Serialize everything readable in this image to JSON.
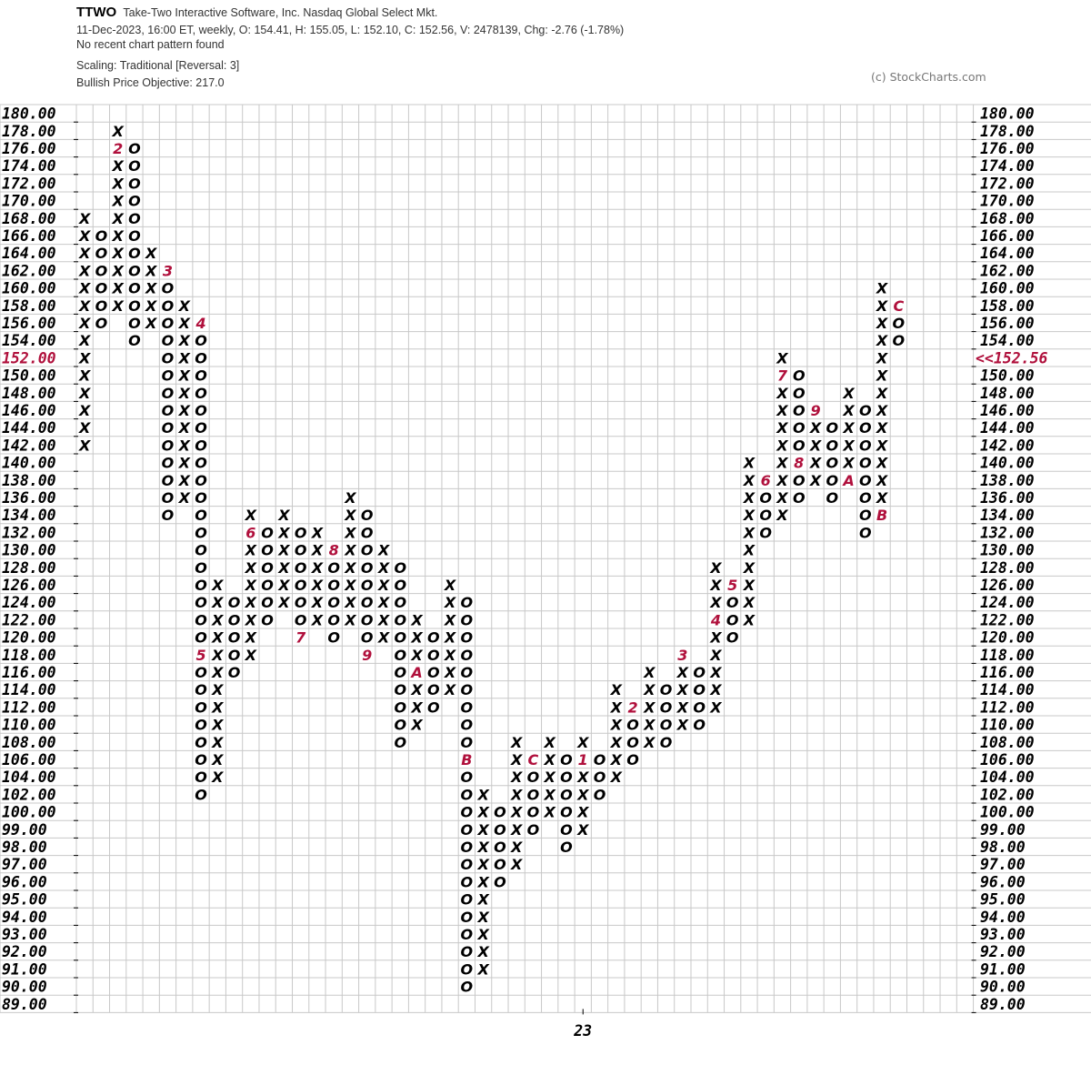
{
  "header": {
    "symbol": "TTWO",
    "name": "Take-Two Interactive Software, Inc.  Nasdaq Global Select Mkt.",
    "quote": "11-Dec-2023, 16:00 ET, weekly, O: 154.41, H: 155.05, L: 152.10, C: 152.56, V: 2478139, Chg: -2.76 (-1.78%)",
    "pattern": "No recent chart pattern found",
    "scaling": "Scaling: Traditional [Reversal: 3]",
    "objective": "Bullish Price Objective: 217.0"
  },
  "copyright": "(c) StockCharts.com",
  "chart_data": {
    "type": "point-and-figure",
    "reversal": 3,
    "levels": [
      180,
      178,
      176,
      174,
      172,
      170,
      168,
      166,
      164,
      162,
      160,
      158,
      156,
      154,
      152,
      150,
      148,
      146,
      144,
      142,
      140,
      138,
      136,
      134,
      132,
      130,
      128,
      126,
      124,
      122,
      120,
      118,
      116,
      114,
      112,
      110,
      108,
      106,
      104,
      102,
      100,
      99,
      98,
      97,
      96,
      95,
      94,
      93,
      92,
      91,
      90,
      89
    ],
    "tick_labels": [
      "180.00",
      "178.00",
      "176.00",
      "174.00",
      "172.00",
      "170.00",
      "168.00",
      "166.00",
      "164.00",
      "162.00",
      "160.00",
      "158.00",
      "156.00",
      "154.00",
      "152.00",
      "150.00",
      "148.00",
      "146.00",
      "144.00",
      "142.00",
      "140.00",
      "138.00",
      "136.00",
      "134.00",
      "132.00",
      "130.00",
      "128.00",
      "126.00",
      "124.00",
      "122.00",
      "120.00",
      "118.00",
      "116.00",
      "114.00",
      "112.00",
      "110.00",
      "108.00",
      "106.00",
      "104.00",
      "102.00",
      "100.00",
      "99.00",
      "98.00",
      "97.00",
      "96.00",
      "95.00",
      "94.00",
      "93.00",
      "92.00",
      "91.00",
      "90.00",
      "89.00"
    ],
    "highlight_level": 152,
    "last_price_label": "<<152.56",
    "last_price": 152.56,
    "x_labels": [
      {
        "column": 30,
        "label": "23"
      }
    ],
    "colors": {
      "marks": "#000000",
      "month_markers": "#b0103c",
      "grid": "#c8c8c8"
    },
    "columns": [
      {
        "t": "X",
        "from": 142,
        "to": 168
      },
      {
        "t": "O",
        "from": 156,
        "to": 166
      },
      {
        "t": "X",
        "from": 158,
        "to": 178,
        "m": {
          "176": "2"
        }
      },
      {
        "t": "O",
        "from": 154,
        "to": 176
      },
      {
        "t": "X",
        "from": 156,
        "to": 164
      },
      {
        "t": "O",
        "from": 134,
        "to": 162,
        "m": {
          "162": "3"
        }
      },
      {
        "t": "X",
        "from": 136,
        "to": 158
      },
      {
        "t": "O",
        "from": 102,
        "to": 156,
        "m": {
          "156": "4",
          "118": "5"
        }
      },
      {
        "t": "X",
        "from": 104,
        "to": 126
      },
      {
        "t": "O",
        "from": 116,
        "to": 124
      },
      {
        "t": "X",
        "from": 118,
        "to": 134,
        "m": {
          "132": "6"
        }
      },
      {
        "t": "O",
        "from": 122,
        "to": 132
      },
      {
        "t": "X",
        "from": 124,
        "to": 134
      },
      {
        "t": "O",
        "from": 120,
        "to": 132,
        "m": {
          "120": "7"
        }
      },
      {
        "t": "X",
        "from": 122,
        "to": 132
      },
      {
        "t": "O",
        "from": 120,
        "to": 130,
        "m": {
          "130": "8"
        }
      },
      {
        "t": "X",
        "from": 122,
        "to": 136
      },
      {
        "t": "O",
        "from": 118,
        "to": 134,
        "m": {
          "118": "9"
        }
      },
      {
        "t": "X",
        "from": 120,
        "to": 130
      },
      {
        "t": "O",
        "from": 108,
        "to": 128
      },
      {
        "t": "X",
        "from": 110,
        "to": 122,
        "m": {
          "116": "A"
        }
      },
      {
        "t": "O",
        "from": 112,
        "to": 120
      },
      {
        "t": "X",
        "from": 114,
        "to": 126
      },
      {
        "t": "O",
        "from": 90,
        "to": 124,
        "m": {
          "106": "B"
        }
      },
      {
        "t": "X",
        "from": 91,
        "to": 102
      },
      {
        "t": "O",
        "from": 96,
        "to": 100
      },
      {
        "t": "X",
        "from": 97,
        "to": 108
      },
      {
        "t": "O",
        "from": 99,
        "to": 106,
        "m": {
          "106": "C"
        }
      },
      {
        "t": "X",
        "from": 100,
        "to": 108
      },
      {
        "t": "O",
        "from": 98,
        "to": 106
      },
      {
        "t": "X",
        "from": 99,
        "to": 108,
        "m": {
          "106": "1"
        }
      },
      {
        "t": "O",
        "from": 102,
        "to": 106
      },
      {
        "t": "X",
        "from": 104,
        "to": 114
      },
      {
        "t": "O",
        "from": 106,
        "to": 112,
        "m": {
          "112": "2"
        }
      },
      {
        "t": "X",
        "from": 108,
        "to": 116
      },
      {
        "t": "O",
        "from": 108,
        "to": 114
      },
      {
        "t": "X",
        "from": 110,
        "to": 118,
        "m": {
          "118": "3"
        }
      },
      {
        "t": "O",
        "from": 110,
        "to": 116
      },
      {
        "t": "X",
        "from": 112,
        "to": 128,
        "m": {
          "122": "4"
        }
      },
      {
        "t": "O",
        "from": 120,
        "to": 126,
        "m": {
          "126": "5"
        }
      },
      {
        "t": "X",
        "from": 122,
        "to": 140
      },
      {
        "t": "O",
        "from": 132,
        "to": 138,
        "m": {
          "138": "6"
        }
      },
      {
        "t": "X",
        "from": 134,
        "to": 152,
        "m": {
          "150": "7"
        }
      },
      {
        "t": "O",
        "from": 136,
        "to": 150,
        "m": {
          "140": "8"
        }
      },
      {
        "t": "X",
        "from": 138,
        "to": 146,
        "m": {
          "146": "9"
        }
      },
      {
        "t": "O",
        "from": 136,
        "to": 144
      },
      {
        "t": "X",
        "from": 138,
        "to": 148,
        "m": {
          "138": "A"
        }
      },
      {
        "t": "O",
        "from": 132,
        "to": 146
      },
      {
        "t": "X",
        "from": 134,
        "to": 160,
        "m": {
          "134": "B"
        }
      },
      {
        "t": "O",
        "from": 154,
        "to": 158,
        "m": {
          "158": "C"
        }
      }
    ]
  }
}
